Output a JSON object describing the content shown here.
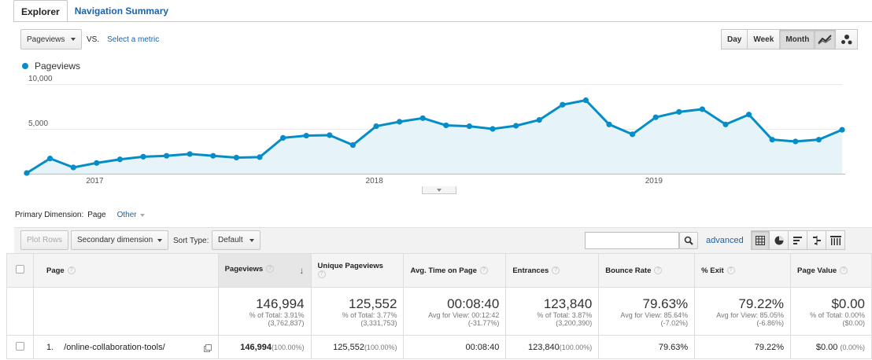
{
  "tabs": [
    "Explorer",
    "Navigation Summary"
  ],
  "metric": {
    "selected": "Pageviews",
    "vs": "VS.",
    "select_metric": "Select a metric"
  },
  "periods": [
    "Day",
    "Week",
    "Month"
  ],
  "legend": "Pageviews",
  "chart_data": {
    "type": "area",
    "series": [
      {
        "name": "Pageviews",
        "values": [
          80,
          1700,
          700,
          1200,
          1600,
          1900,
          2000,
          2200,
          2000,
          1800,
          1850,
          4000,
          4250,
          4300,
          3200,
          5300,
          5800,
          6200,
          5400,
          5300,
          5000,
          5350,
          6000,
          7700,
          8200,
          5500,
          4400,
          6300,
          6900,
          7200,
          5500,
          6600,
          3800,
          3600,
          3800,
          4900
        ],
        "color": "#058dc7"
      }
    ],
    "y_ticks": [
      "10,000",
      "5,000"
    ],
    "x_labels": [
      "2017",
      "2018",
      "2019"
    ],
    "ylim": [
      0,
      10000
    ]
  },
  "primary_dimension": {
    "label": "Primary Dimension:",
    "value": "Page",
    "other": "Other"
  },
  "toolbar": {
    "plot_rows": "Plot Rows",
    "secondary_dim": "Secondary dimension",
    "sort_type_label": "Sort Type:",
    "sort_type": "Default",
    "advanced": "advanced"
  },
  "table": {
    "headers": [
      "Page",
      "Pageviews",
      "Unique Pageviews",
      "Avg. Time on Page",
      "Entrances",
      "Bounce Rate",
      "% Exit",
      "Page Value"
    ],
    "totals": [
      {
        "big": "146,994",
        "l1": "% of Total: 3.91%",
        "l2": "(3,762,837)"
      },
      {
        "big": "125,552",
        "l1": "% of Total: 3.77%",
        "l2": "(3,331,753)"
      },
      {
        "big": "00:08:40",
        "l1": "Avg for View: 00:12:42",
        "l2": "(-31.77%)"
      },
      {
        "big": "123,840",
        "l1": "% of Total: 3.87%",
        "l2": "(3,200,390)"
      },
      {
        "big": "79.63%",
        "l1": "Avg for View: 85.64%",
        "l2": "(-7.02%)"
      },
      {
        "big": "79.22%",
        "l1": "Avg for View: 85.05%",
        "l2": "(-6.86%)"
      },
      {
        "big": "$0.00",
        "l1": "% of Total: 0.00%",
        "l2": "($0.00)"
      }
    ],
    "rows": [
      {
        "num": "1.",
        "page": "/online-collaboration-tools/",
        "pageviews": "146,994",
        "pageviews_pct": "(100.00%)",
        "unique": "125,552",
        "unique_pct": "(100.00%)",
        "avg_time": "00:08:40",
        "entrances": "123,840",
        "entrances_pct": "(100.00%)",
        "bounce": "79.63%",
        "exit": "79.22%",
        "value": "$0.00",
        "value_pct": "(0.00%)"
      }
    ]
  }
}
